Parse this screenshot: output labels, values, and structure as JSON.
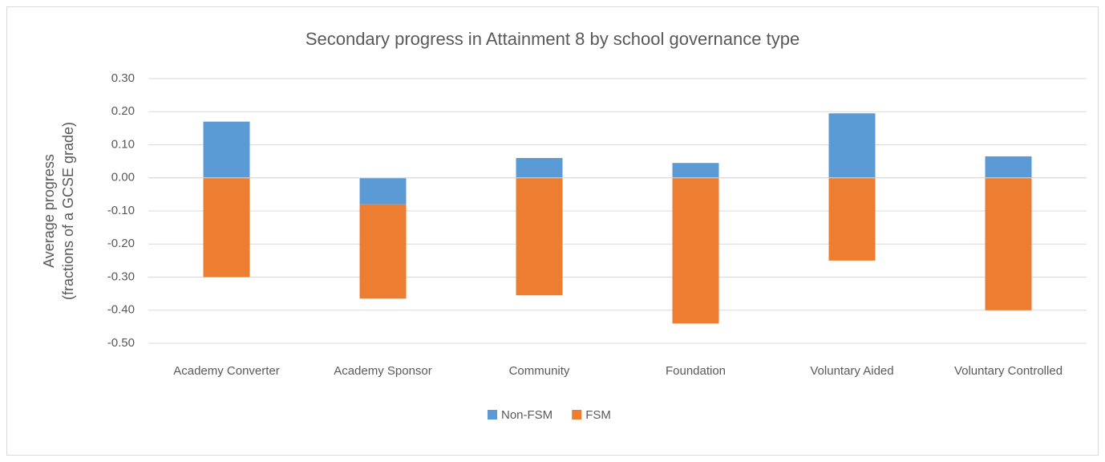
{
  "chart_data": {
    "type": "stacked_bar",
    "title": "Secondary progress in Attainment 8 by school governance type",
    "y_label": [
      "Average progress",
      "(fractions of a GCSE grade)"
    ],
    "categories": [
      "Academy Converter",
      "Academy Sponsor",
      "Community",
      "Foundation",
      "Voluntary Aided",
      "Voluntary Controlled"
    ],
    "series": [
      {
        "name": "Non-FSM",
        "color": "#5b9bd5",
        "values": [
          0.17,
          -0.08,
          0.06,
          0.045,
          0.195,
          0.065
        ]
      },
      {
        "name": "FSM",
        "color": "#ed7d31",
        "values": [
          -0.3,
          -0.285,
          -0.355,
          -0.44,
          -0.25,
          -0.4
        ]
      }
    ],
    "ylim": [
      -0.5,
      0.3
    ],
    "yticks": [
      {
        "value": -0.5,
        "label": "-0.50"
      },
      {
        "value": -0.4,
        "label": "-0.40"
      },
      {
        "value": -0.3,
        "label": "-0.30"
      },
      {
        "value": -0.2,
        "label": "-0.20"
      },
      {
        "value": -0.1,
        "label": "-0.10"
      },
      {
        "value": 0,
        "label": "0.00"
      },
      {
        "value": 0.1,
        "label": "0.10"
      },
      {
        "value": 0.2,
        "label": "0.20"
      },
      {
        "value": 0.3,
        "label": "0.30"
      }
    ],
    "grid": true,
    "legend": "bottom"
  }
}
